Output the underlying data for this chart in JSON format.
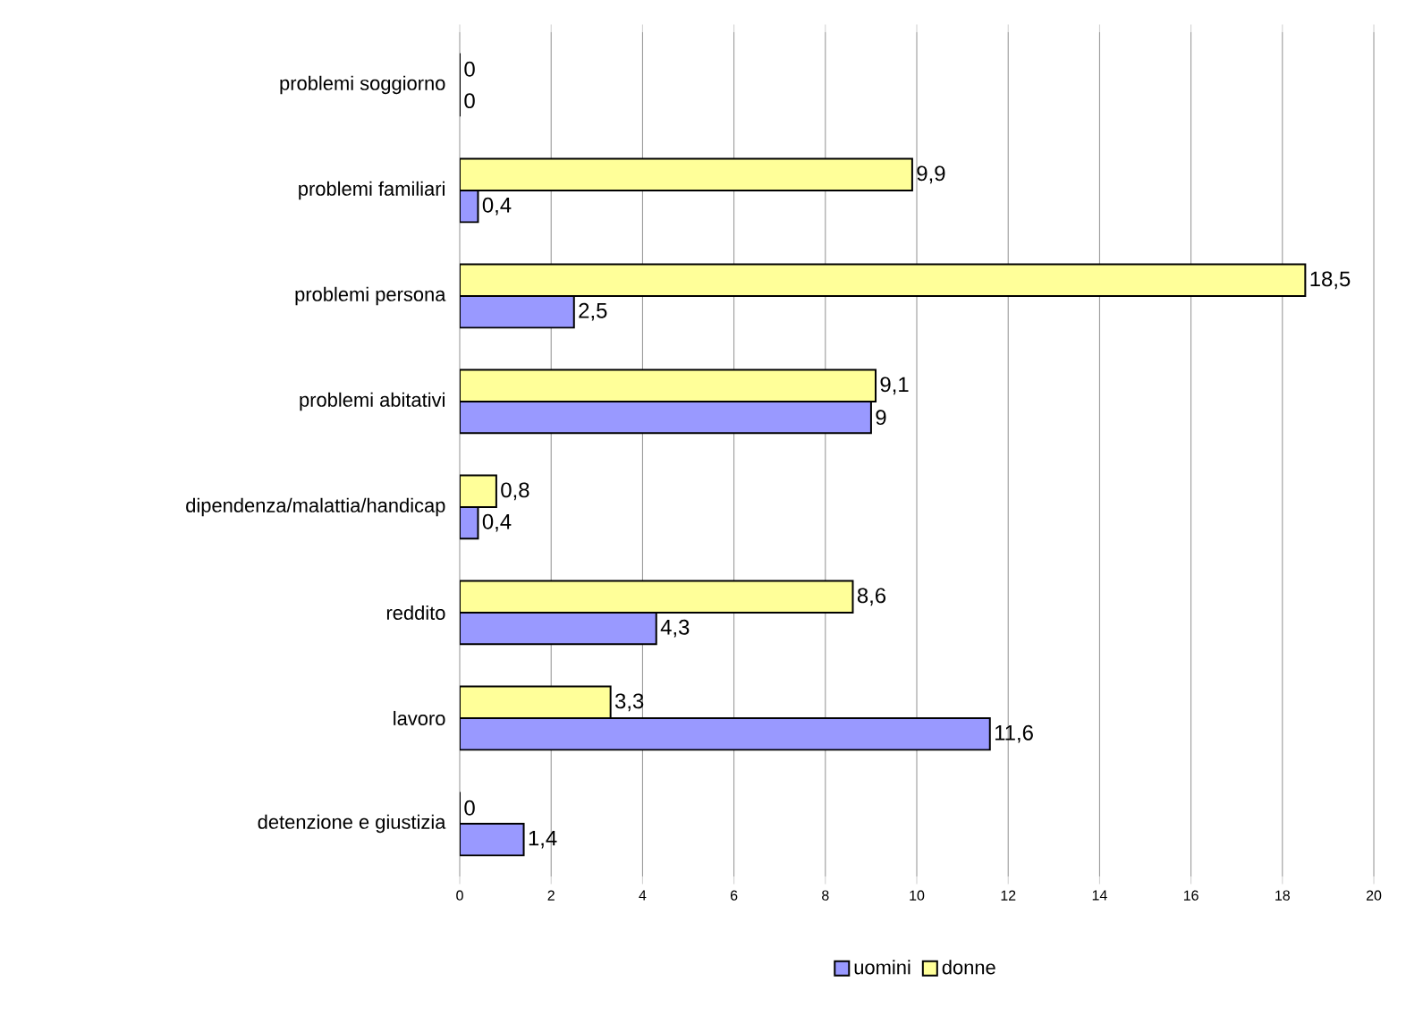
{
  "chart_data": {
    "type": "bar",
    "orientation": "horizontal",
    "categories": [
      "problemi soggiorno",
      "problemi familiari",
      "problemi persona",
      "problemi abitativi",
      "dipendenza/malattia/handicap",
      "reddito",
      "lavoro",
      "detenzione e giustizia"
    ],
    "series": [
      {
        "name": "uomini",
        "color": "#9999ff",
        "values": [
          0,
          0.4,
          2.5,
          9,
          0.4,
          4.3,
          11.6,
          1.4
        ],
        "value_labels": [
          "0",
          "0,4",
          "2,5",
          "9",
          "0,4",
          "4,3",
          "11,6",
          "1,4"
        ]
      },
      {
        "name": "donne",
        "color": "#ffff99",
        "values": [
          0,
          9.9,
          18.5,
          9.1,
          0.8,
          8.6,
          3.3,
          0
        ],
        "value_labels": [
          "0",
          "9,9",
          "18,5",
          "9,1",
          "0,8",
          "8,6",
          "3,3",
          "0"
        ]
      }
    ],
    "xlim": [
      0,
      20
    ],
    "xticks": [
      0,
      2,
      4,
      6,
      8,
      10,
      12,
      14,
      16,
      18,
      20
    ],
    "grid": "x",
    "legend": "bottom"
  }
}
